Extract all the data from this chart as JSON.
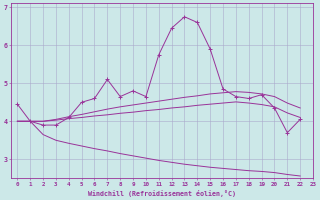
{
  "bg_color": "#cce8e8",
  "grid_color": "#aaaacc",
  "line_color": "#993399",
  "x": [
    0,
    1,
    2,
    3,
    4,
    5,
    6,
    7,
    8,
    9,
    10,
    11,
    12,
    13,
    14,
    15,
    16,
    17,
    18,
    19,
    20,
    21,
    22
  ],
  "line1": [
    4.45,
    4.0,
    3.9,
    3.9,
    4.1,
    4.5,
    4.6,
    5.1,
    4.65,
    4.8,
    4.65,
    5.75,
    6.45,
    6.75,
    6.6,
    5.9,
    4.85,
    4.65,
    4.6,
    4.7,
    4.35,
    3.7,
    4.05
  ],
  "line_upper": [
    4.0,
    4.0,
    4.0,
    4.05,
    4.12,
    4.18,
    4.25,
    4.32,
    4.38,
    4.43,
    4.48,
    4.53,
    4.58,
    4.63,
    4.67,
    4.72,
    4.75,
    4.78,
    4.76,
    4.72,
    4.65,
    4.48,
    4.35
  ],
  "line_mid": [
    4.0,
    4.0,
    4.0,
    4.03,
    4.07,
    4.1,
    4.14,
    4.17,
    4.21,
    4.24,
    4.28,
    4.31,
    4.35,
    4.38,
    4.42,
    4.45,
    4.48,
    4.51,
    4.48,
    4.44,
    4.38,
    4.22,
    4.1
  ],
  "line_lower": [
    4.0,
    4.0,
    3.65,
    3.5,
    3.42,
    3.35,
    3.28,
    3.22,
    3.15,
    3.09,
    3.03,
    2.97,
    2.92,
    2.87,
    2.83,
    2.79,
    2.76,
    2.73,
    2.7,
    2.68,
    2.65,
    2.6,
    2.56
  ],
  "xlabel": "Windchill (Refroidissement éolien,°C)",
  "ylim": [
    2.5,
    7.1
  ],
  "xlim": [
    -0.5,
    23.0
  ],
  "yticks": [
    3,
    4,
    5,
    6,
    7
  ],
  "xticks": [
    0,
    1,
    2,
    3,
    4,
    5,
    6,
    7,
    8,
    9,
    10,
    11,
    12,
    13,
    14,
    15,
    16,
    17,
    18,
    19,
    20,
    21,
    22,
    23
  ]
}
